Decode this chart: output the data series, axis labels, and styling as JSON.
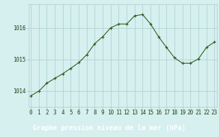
{
  "x": [
    0,
    1,
    2,
    3,
    4,
    5,
    6,
    7,
    8,
    9,
    10,
    11,
    12,
    13,
    14,
    15,
    16,
    17,
    18,
    19,
    20,
    21,
    22,
    23
  ],
  "y": [
    1013.85,
    1014.0,
    1014.25,
    1014.4,
    1014.55,
    1014.72,
    1014.9,
    1015.15,
    1015.5,
    1015.72,
    1016.0,
    1016.12,
    1016.12,
    1016.38,
    1016.42,
    1016.12,
    1015.72,
    1015.38,
    1015.05,
    1014.88,
    1014.88,
    1015.02,
    1015.38,
    1015.55
  ],
  "line_color": "#2d5a1b",
  "marker_color": "#2d5a1b",
  "bg_color": "#d6efef",
  "footer_bg": "#2d6b1a",
  "footer_text_color": "#ffffff",
  "grid_color": "#a8cccc",
  "xlabel": "Graphe pression niveau de la mer (hPa)",
  "xlabel_color": "#ffffff",
  "ylabel_color": "#1a3d0a",
  "yticks": [
    1014,
    1015,
    1016
  ],
  "xtick_labels": [
    "0",
    "1",
    "2",
    "3",
    "4",
    "5",
    "6",
    "7",
    "8",
    "9",
    "10",
    "11",
    "12",
    "13",
    "14",
    "15",
    "16",
    "17",
    "18",
    "19",
    "20",
    "21",
    "22",
    "23"
  ],
  "ylim": [
    1013.5,
    1016.75
  ],
  "xlim": [
    -0.3,
    23.3
  ],
  "tick_fontsize": 5.5,
  "xlabel_fontsize": 7.0
}
